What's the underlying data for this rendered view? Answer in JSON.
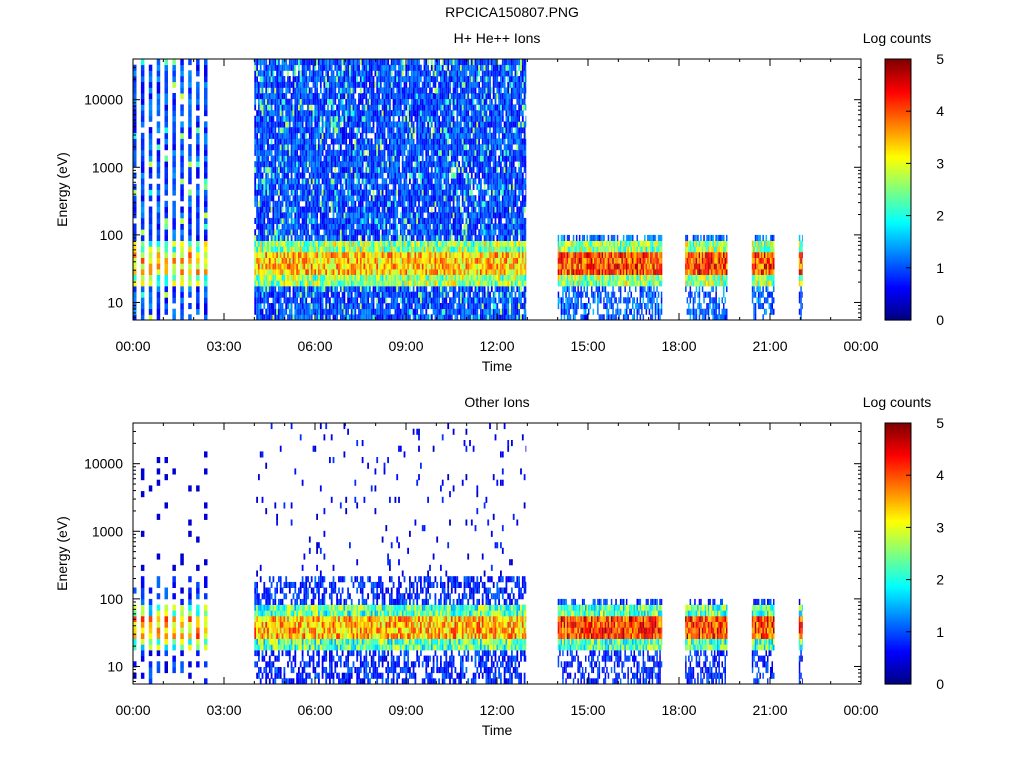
{
  "page": {
    "title": "RPCICA150807.PNG"
  },
  "colors": {
    "colormap": [
      "#00007f",
      "#0000ff",
      "#007fff",
      "#00ffff",
      "#7fff7f",
      "#ffff00",
      "#ff7f00",
      "#ff0000",
      "#7f0000"
    ],
    "axes": "#000000",
    "background": "#ffffff"
  },
  "chart_data": [
    {
      "type": "heatmap",
      "title": "H+ He++ Ions",
      "xlabel": "Time",
      "ylabel": "Energy (eV)",
      "x_ticks": [
        "00:00",
        "03:00",
        "06:00",
        "09:00",
        "12:00",
        "15:00",
        "18:00",
        "21:00",
        "00:00"
      ],
      "xlim_hours": [
        0,
        24
      ],
      "y_scale": "log",
      "y_ticks": [
        10,
        100,
        1000,
        10000
      ],
      "y_tick_labels": [
        "10",
        "100",
        "1000",
        "10000"
      ],
      "ylim": [
        5.5,
        40000
      ],
      "colorbar": {
        "label": "Log counts",
        "range": [
          0,
          5
        ],
        "ticks": [
          "0",
          "1",
          "2",
          "3",
          "4",
          "5"
        ]
      },
      "data_intervals_hours": [
        {
          "start": 0.0,
          "end": 2.5,
          "mode": "sparse"
        },
        {
          "start": 4.0,
          "end": 12.95,
          "mode": "dense"
        },
        {
          "start": 14.0,
          "end": 17.45,
          "mode": "low"
        },
        {
          "start": 18.2,
          "end": 19.6,
          "mode": "low"
        },
        {
          "start": 20.4,
          "end": 21.15,
          "mode": "low"
        },
        {
          "start": 21.95,
          "end": 22.08,
          "mode": "low"
        }
      ],
      "peak_energy_band_eV": [
        25,
        55
      ],
      "peak_log_counts": 4.8,
      "background_log_counts": 1.0
    },
    {
      "type": "heatmap",
      "title": "Other Ions",
      "xlabel": "Time",
      "ylabel": "Energy (eV)",
      "x_ticks": [
        "00:00",
        "03:00",
        "06:00",
        "09:00",
        "12:00",
        "15:00",
        "18:00",
        "21:00",
        "00:00"
      ],
      "xlim_hours": [
        0,
        24
      ],
      "y_scale": "log",
      "y_ticks": [
        10,
        100,
        1000,
        10000
      ],
      "y_tick_labels": [
        "10",
        "100",
        "1000",
        "10000"
      ],
      "ylim": [
        5.5,
        40000
      ],
      "colorbar": {
        "label": "Log counts",
        "range": [
          0,
          5
        ],
        "ticks": [
          "0",
          "1",
          "2",
          "3",
          "4",
          "5"
        ]
      },
      "data_intervals_hours": [
        {
          "start": 0.0,
          "end": 2.5,
          "mode": "sparse"
        },
        {
          "start": 4.0,
          "end": 12.95,
          "mode": "dense"
        },
        {
          "start": 14.0,
          "end": 17.45,
          "mode": "low"
        },
        {
          "start": 18.2,
          "end": 19.6,
          "mode": "low"
        },
        {
          "start": 20.4,
          "end": 21.15,
          "mode": "low"
        },
        {
          "start": 21.95,
          "end": 22.08,
          "mode": "low"
        }
      ],
      "peak_energy_band_eV": [
        25,
        60
      ],
      "peak_log_counts": 4.8,
      "background_log_counts": 0.2
    }
  ]
}
